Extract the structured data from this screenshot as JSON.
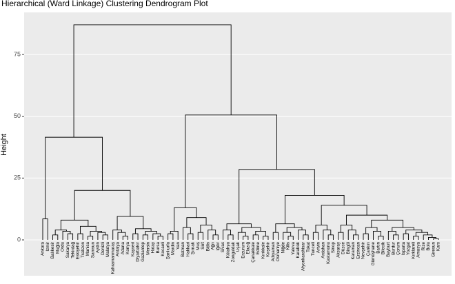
{
  "chart_data": {
    "type": "dendrogram",
    "title": "Hierarchical (Ward Linkage) Clustering Dendrogram Plot",
    "ylabel": "Height",
    "ylim": [
      -14.5,
      92
    ],
    "yticks": [
      0,
      25,
      50,
      75
    ],
    "grid": true,
    "color": "#000000",
    "tree": {
      "height": 87,
      "children": [
        {
          "height": 41.5,
          "children": [
            {
              "height": 8.5,
              "children": [
                "Ankara",
                "Izmir"
              ]
            },
            {
              "height": 20,
              "children": [
                {
                  "height": 8,
                  "children": [
                    {
                      "height": 4,
                      "children": [
                        {
                          "height": 2,
                          "children": [
                            "Balıkesir",
                            "Muğla"
                          ]
                        },
                        {
                          "height": 3.5,
                          "children": [
                            "Ordu",
                            {
                              "height": 2.5,
                              "children": [
                                "Sakarya",
                                "Tekirdağ"
                              ]
                            }
                          ]
                        }
                      ]
                    },
                    {
                      "height": 5.5,
                      "children": [
                        {
                          "height": 2.5,
                          "children": [
                            "Eskişehir",
                            "Trabzon"
                          ]
                        },
                        {
                          "height": 3.5,
                          "children": [
                            {
                              "height": 1.5,
                              "children": [
                                "Manisa",
                                "Samsun"
                              ]
                            },
                            {
                              "height": 3,
                              "children": [
                                "Aydın",
                                {
                                  "height": 2,
                                  "children": [
                                    "Denizli",
                                    "Malatya"
                                  ]
                                }
                              ]
                            }
                          ]
                        }
                      ]
                    }
                  ]
                },
                {
                  "height": 9.5,
                  "children": [
                    {
                      "height": 4,
                      "children": [
                        "Kahramanmaraş",
                        {
                          "height": 3,
                          "children": [
                            "Antalya",
                            {
                              "height": 1.5,
                              "children": [
                                "Adana",
                                "Konya"
                              ]
                            }
                          ]
                        }
                      ]
                    },
                    {
                      "height": 4.5,
                      "children": [
                        {
                          "height": 2.5,
                          "children": [
                            "Kayseri",
                            "Diyarbakır"
                          ]
                        },
                        {
                          "height": 3.5,
                          "children": [
                            {
                              "height": 2,
                              "children": [
                                "Gaziantep",
                                "Mersin"
                              ]
                            },
                            {
                              "height": 2.5,
                              "children": [
                                "Hatay",
                                {
                                  "height": 1.5,
                                  "children": [
                                    "Bursa",
                                    "Kocaeli"
                                  ]
                                }
                              ]
                            }
                          ]
                        }
                      ]
                    }
                  ]
                }
              ]
            }
          ]
        },
        {
          "height": 50.5,
          "children": [
            {
              "height": 13,
              "children": [
                {
                  "height": 3.5,
                  "children": [
                    {
                      "height": 2.5,
                      "children": [
                        "Şanlıurfa",
                        "Mardin"
                      ]
                    },
                    "Van"
                  ]
                },
                {
                  "height": 9,
                  "children": [
                    {
                      "height": 5,
                      "children": [
                        "Batman",
                        {
                          "height": 2.5,
                          "children": [
                            "Hakkari",
                            "Şırnak"
                          ]
                        }
                      ]
                    },
                    {
                      "height": 6,
                      "children": [
                        {
                          "height": 3,
                          "children": [
                            "Muş",
                            "Siirt"
                          ]
                        },
                        {
                          "height": 4,
                          "children": [
                            "Bitlis",
                            {
                              "height": 2,
                              "children": [
                                "Ağrı",
                                "Iğdır"
                              ]
                            }
                          ]
                        }
                      ]
                    }
                  ]
                }
              ]
            },
            {
              "height": 28.5,
              "children": [
                {
                  "height": 6.5,
                  "children": [
                    {
                      "height": 4,
                      "children": [
                        "Sivas",
                        {
                          "height": 2,
                          "children": [
                            "Kütahya",
                            "Zonguldak"
                          ]
                        }
                      ]
                    },
                    {
                      "height": 5,
                      "children": [
                        {
                          "height": 3,
                          "children": [
                            "Uşak",
                            {
                              "height": 1.5,
                              "children": [
                                "Erzurum",
                                "Elazığ"
                              ]
                            }
                          ]
                        },
                        {
                          "height": 3.5,
                          "children": [
                            {
                              "height": 2,
                              "children": [
                                "Çanakkale",
                                "Edirne"
                              ]
                            },
                            {
                              "height": 1.5,
                              "children": [
                                "Kırıkkale",
                                "Kırşehir"
                              ]
                            }
                          ]
                        }
                      ]
                    }
                  ]
                },
                {
                  "height": 18,
                  "children": [
                    {
                      "height": 6.5,
                      "children": [
                        {
                          "height": 3,
                          "children": [
                            "Adıyaman",
                            "Osmaniye"
                          ]
                        },
                        {
                          "height": 5,
                          "children": [
                            {
                              "height": 3,
                              "children": [
                                "Niğde",
                                {
                                  "height": 1.5,
                                  "children": [
                                    "Kilis",
                                    "Yalova"
                                  ]
                                }
                              ]
                            },
                            {
                              "height": 4,
                              "children": [
                                "Karabük",
                                {
                                  "height": 2,
                                  "children": [
                                    "Afyonkarahisar",
                                    "Tokat"
                                  ]
                                }
                              ]
                            }
                          ]
                        }
                      ]
                    },
                    {
                      "height": 14,
                      "children": [
                        {
                          "height": 6,
                          "children": [
                            {
                              "height": 3,
                              "children": [
                                "Tunceli",
                                "Artvin"
                              ]
                            },
                            {
                              "height": 4,
                              "children": [
                                "Ardahan",
                                {
                                  "height": 2,
                                  "children": [
                                    "Kastamonu",
                                    "Sinop"
                                  ]
                                }
                              ]
                            }
                          ]
                        },
                        {
                          "height": 10,
                          "children": [
                            {
                              "height": 6,
                              "children": [
                                {
                                  "height": 3,
                                  "children": [
                                    "Aksaray",
                                    "Düzce"
                                  ]
                                },
                                {
                                  "height": 4,
                                  "children": [
                                    "Bingöl",
                                    {
                                      "height": 2,
                                      "children": [
                                        "Karaman",
                                        "Erzincan"
                                      ]
                                    }
                                  ]
                                }
                              ]
                            },
                            {
                              "height": 8,
                              "children": [
                                {
                                  "height": 5,
                                  "children": [
                                    {
                                      "height": 2.5,
                                      "children": [
                                        "Nevşehir",
                                        "Çankırı"
                                      ]
                                    },
                                    {
                                      "height": 3.5,
                                      "children": [
                                        "Gümüşhane",
                                        {
                                          "height": 1.5,
                                          "children": [
                                            "Bartın",
                                            "Bilecik"
                                          ]
                                        }
                                      ]
                                    }
                                  ]
                                },
                                {
                                  "height": 5,
                                  "children": [
                                    {
                                      "height": 3.5,
                                      "children": [
                                        "Bayburt",
                                        {
                                          "height": 2,
                                          "children": [
                                            "Burdur",
                                            "Çorum"
                                          ]
                                        }
                                      ]
                                    },
                                    {
                                      "height": 4,
                                      "children": [
                                        {
                                          "height": 2.5,
                                          "children": [
                                            "Isparta",
                                            "Yozgat"
                                          ]
                                        },
                                        {
                                          "height": 3,
                                          "children": [
                                            {
                                              "height": 1.5,
                                              "children": [
                                                "Kırklareli",
                                                "Amasya"
                                              ]
                                            },
                                            {
                                              "height": 2,
                                              "children": [
                                                "Rize",
                                                {
                                                  "height": 1,
                                                  "children": [
                                                    "Bolu",
                                                    {
                                                      "height": 0.5,
                                                      "children": [
                                                        "Giresun",
                                                        "Kars"
                                                      ]
                                                    }
                                                  ]
                                                }
                                              ]
                                            }
                                          ]
                                        }
                                      ]
                                    }
                                  ]
                                }
                              ]
                            }
                          ]
                        }
                      ]
                    }
                  ]
                }
              ]
            }
          ]
        }
      ]
    }
  }
}
